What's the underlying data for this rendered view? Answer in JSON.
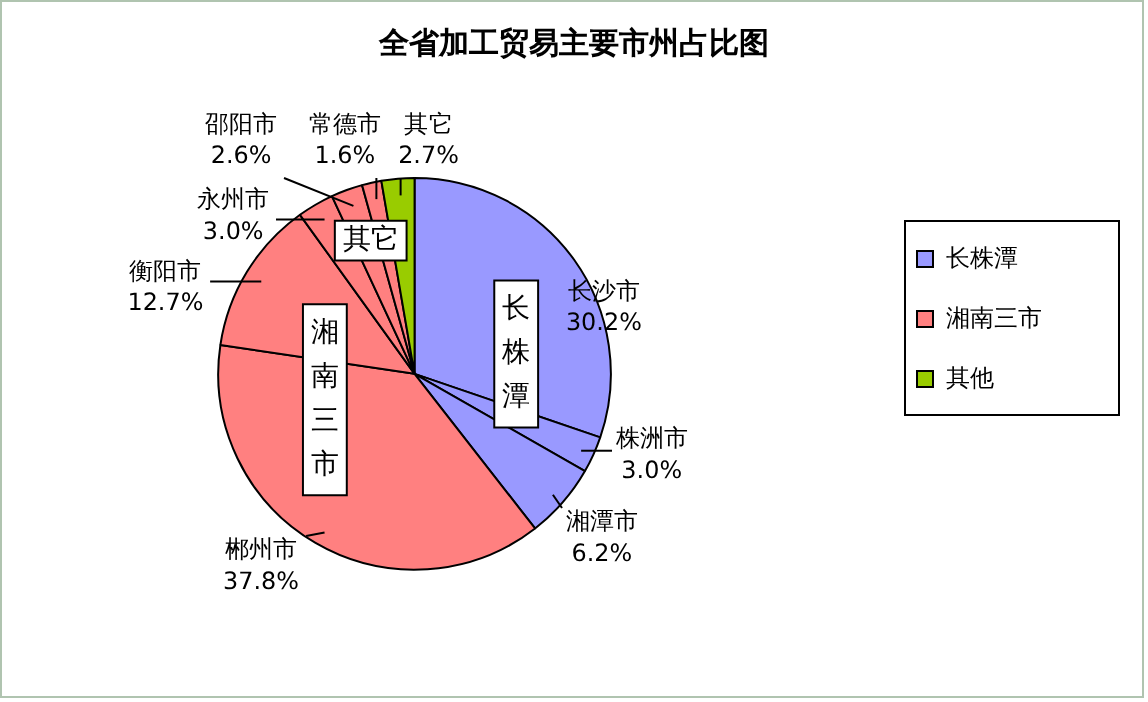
{
  "chart_data": {
    "type": "pie",
    "title": "全省加工贸易主要市州占比图",
    "categories": [
      "长沙市",
      "株洲市",
      "湘潭市",
      "郴州市",
      "衡阳市",
      "永州市",
      "邵阳市",
      "常德市",
      "其它"
    ],
    "values": [
      30.2,
      3.0,
      6.2,
      37.8,
      12.7,
      3.0,
      2.6,
      1.6,
      2.7
    ],
    "colors": [
      "#9999ff",
      "#9999ff",
      "#9999ff",
      "#ff8080",
      "#ff8080",
      "#ff8080",
      "#ff8080",
      "#ff8080",
      "#99cc00"
    ],
    "value_labels": [
      "30.2%",
      "3.0%",
      "6.2%",
      "37.8%",
      "12.7%",
      "3.0%",
      "2.6%",
      "1.6%",
      "2.7%"
    ],
    "annotations": [
      "长株潭",
      "湘南三市",
      "其它",
      "长株潭",
      "湘南三市",
      "其他"
    ]
  }
}
